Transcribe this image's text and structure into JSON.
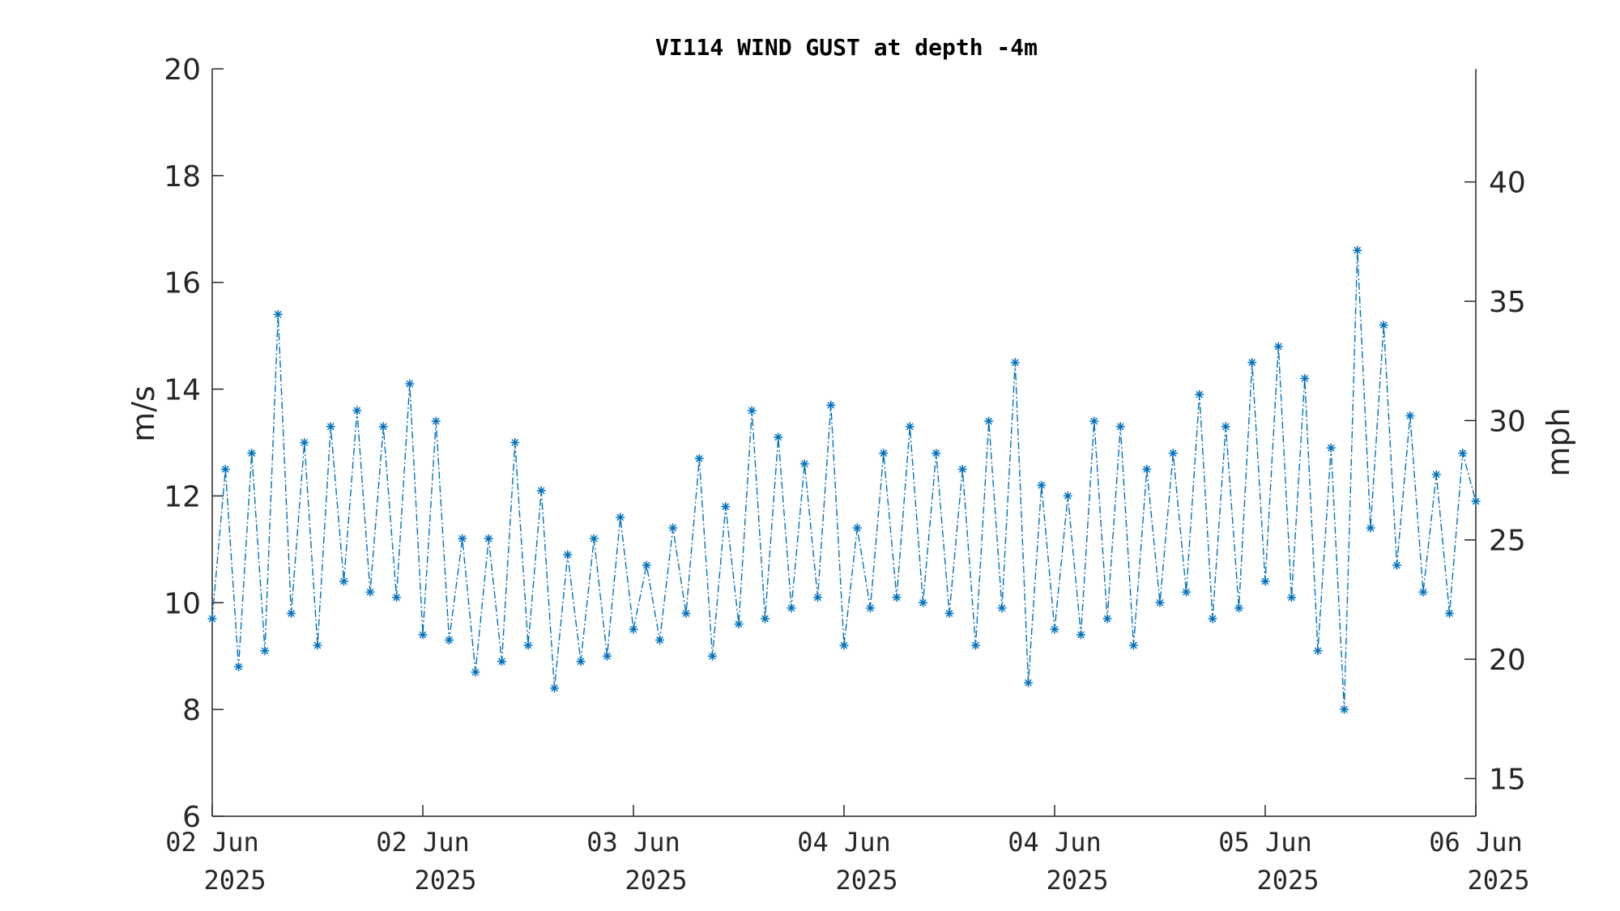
{
  "chart_data": {
    "type": "line",
    "title": "VI114 WIND GUST at depth -4m",
    "xlabel": "",
    "ylabel": "m/s",
    "ylabel_right": "mph",
    "ylim": [
      6,
      20
    ],
    "ylim_right": [
      13.42,
      44.74
    ],
    "yticks": [
      6,
      8,
      10,
      12,
      14,
      16,
      18,
      20
    ],
    "yticks_right": [
      15,
      20,
      25,
      30,
      35,
      40
    ],
    "xlim": [
      "2025-06-02 00:00",
      "2025-06-06 00:00"
    ],
    "xticks": [
      {
        "line1": "02 Jun",
        "line2": "2025",
        "value": "2025-06-02 00:00"
      },
      {
        "line1": "02 Jun",
        "line2": "2025",
        "value": "2025-06-02 16:00"
      },
      {
        "line1": "03 Jun",
        "line2": "2025",
        "value": "2025-06-03 08:00"
      },
      {
        "line1": "04 Jun",
        "line2": "2025",
        "value": "2025-06-04 00:00"
      },
      {
        "line1": "04 Jun",
        "line2": "2025",
        "value": "2025-06-04 16:00"
      },
      {
        "line1": "05 Jun",
        "line2": "2025",
        "value": "2025-06-05 08:00"
      },
      {
        "line1": "06 Jun",
        "line2": "2025",
        "value": "2025-06-06 00:00"
      }
    ],
    "series_color": "#0072BD",
    "marker": "asterisk",
    "line_style": "dash-dot",
    "grid": false,
    "series": [
      {
        "name": "",
        "x": [
          "2025-06-02 00:00",
          "2025-06-02 01:00",
          "2025-06-02 02:00",
          "2025-06-02 03:00",
          "2025-06-02 04:00",
          "2025-06-02 05:00",
          "2025-06-02 06:00",
          "2025-06-02 07:00",
          "2025-06-02 08:00",
          "2025-06-02 09:00",
          "2025-06-02 10:00",
          "2025-06-02 11:00",
          "2025-06-02 12:00",
          "2025-06-02 13:00",
          "2025-06-02 14:00",
          "2025-06-02 15:00",
          "2025-06-02 16:00",
          "2025-06-02 17:00",
          "2025-06-02 18:00",
          "2025-06-02 19:00",
          "2025-06-02 20:00",
          "2025-06-02 21:00",
          "2025-06-02 22:00",
          "2025-06-02 23:00",
          "2025-06-03 00:00",
          "2025-06-03 01:00",
          "2025-06-03 02:00",
          "2025-06-03 03:00",
          "2025-06-03 04:00",
          "2025-06-03 05:00",
          "2025-06-03 06:00",
          "2025-06-03 07:00",
          "2025-06-03 08:00",
          "2025-06-03 09:00",
          "2025-06-03 10:00",
          "2025-06-03 11:00",
          "2025-06-03 12:00",
          "2025-06-03 13:00",
          "2025-06-03 14:00",
          "2025-06-03 15:00",
          "2025-06-03 16:00",
          "2025-06-03 17:00",
          "2025-06-03 18:00",
          "2025-06-03 19:00",
          "2025-06-03 20:00",
          "2025-06-03 21:00",
          "2025-06-03 22:00",
          "2025-06-03 23:00",
          "2025-06-04 00:00",
          "2025-06-04 01:00",
          "2025-06-04 02:00",
          "2025-06-04 03:00",
          "2025-06-04 04:00",
          "2025-06-04 05:00",
          "2025-06-04 06:00",
          "2025-06-04 07:00",
          "2025-06-04 08:00",
          "2025-06-04 09:00",
          "2025-06-04 10:00",
          "2025-06-04 11:00",
          "2025-06-04 12:00",
          "2025-06-04 13:00",
          "2025-06-04 14:00",
          "2025-06-04 15:00",
          "2025-06-04 16:00",
          "2025-06-04 17:00",
          "2025-06-04 18:00",
          "2025-06-04 19:00",
          "2025-06-04 20:00",
          "2025-06-04 21:00",
          "2025-06-04 22:00",
          "2025-06-04 23:00",
          "2025-06-05 00:00",
          "2025-06-05 01:00",
          "2025-06-05 02:00",
          "2025-06-05 03:00",
          "2025-06-05 04:00",
          "2025-06-05 05:00",
          "2025-06-05 06:00",
          "2025-06-05 07:00",
          "2025-06-05 08:00",
          "2025-06-05 09:00",
          "2025-06-05 10:00",
          "2025-06-05 11:00",
          "2025-06-05 12:00",
          "2025-06-05 13:00",
          "2025-06-05 14:00",
          "2025-06-05 15:00",
          "2025-06-05 16:00",
          "2025-06-05 17:00",
          "2025-06-05 18:00",
          "2025-06-05 19:00",
          "2025-06-05 20:00",
          "2025-06-05 21:00",
          "2025-06-05 22:00",
          "2025-06-05 23:00",
          "2025-06-06 00:00"
        ],
        "y": [
          9.7,
          12.5,
          8.8,
          12.8,
          9.1,
          15.4,
          9.8,
          13.0,
          9.2,
          13.3,
          10.4,
          13.6,
          10.2,
          13.3,
          10.1,
          14.1,
          9.4,
          13.4,
          9.3,
          11.2,
          8.7,
          11.2,
          8.9,
          13.0,
          9.2,
          12.1,
          8.4,
          10.9,
          8.9,
          11.2,
          9.0,
          11.6,
          9.5,
          10.7,
          9.3,
          11.4,
          9.8,
          12.7,
          9.0,
          11.8,
          9.6,
          13.6,
          9.7,
          13.1,
          9.9,
          12.6,
          10.1,
          13.7,
          9.2,
          11.4,
          9.9,
          12.8,
          10.1,
          13.3,
          10.0,
          12.8,
          9.8,
          12.5,
          9.2,
          13.4,
          9.9,
          14.5,
          8.5,
          12.2,
          9.5,
          12.0,
          9.4,
          13.4,
          9.7,
          13.3,
          9.2,
          12.5,
          10.0,
          12.8,
          10.2,
          13.9,
          9.7,
          13.3,
          9.9,
          14.5,
          10.4,
          14.8,
          10.1,
          14.2,
          9.1,
          12.9,
          8.0,
          16.6,
          11.4,
          15.2,
          10.7,
          13.5,
          10.2,
          12.4,
          9.8,
          12.8,
          11.9
        ]
      }
    ]
  }
}
